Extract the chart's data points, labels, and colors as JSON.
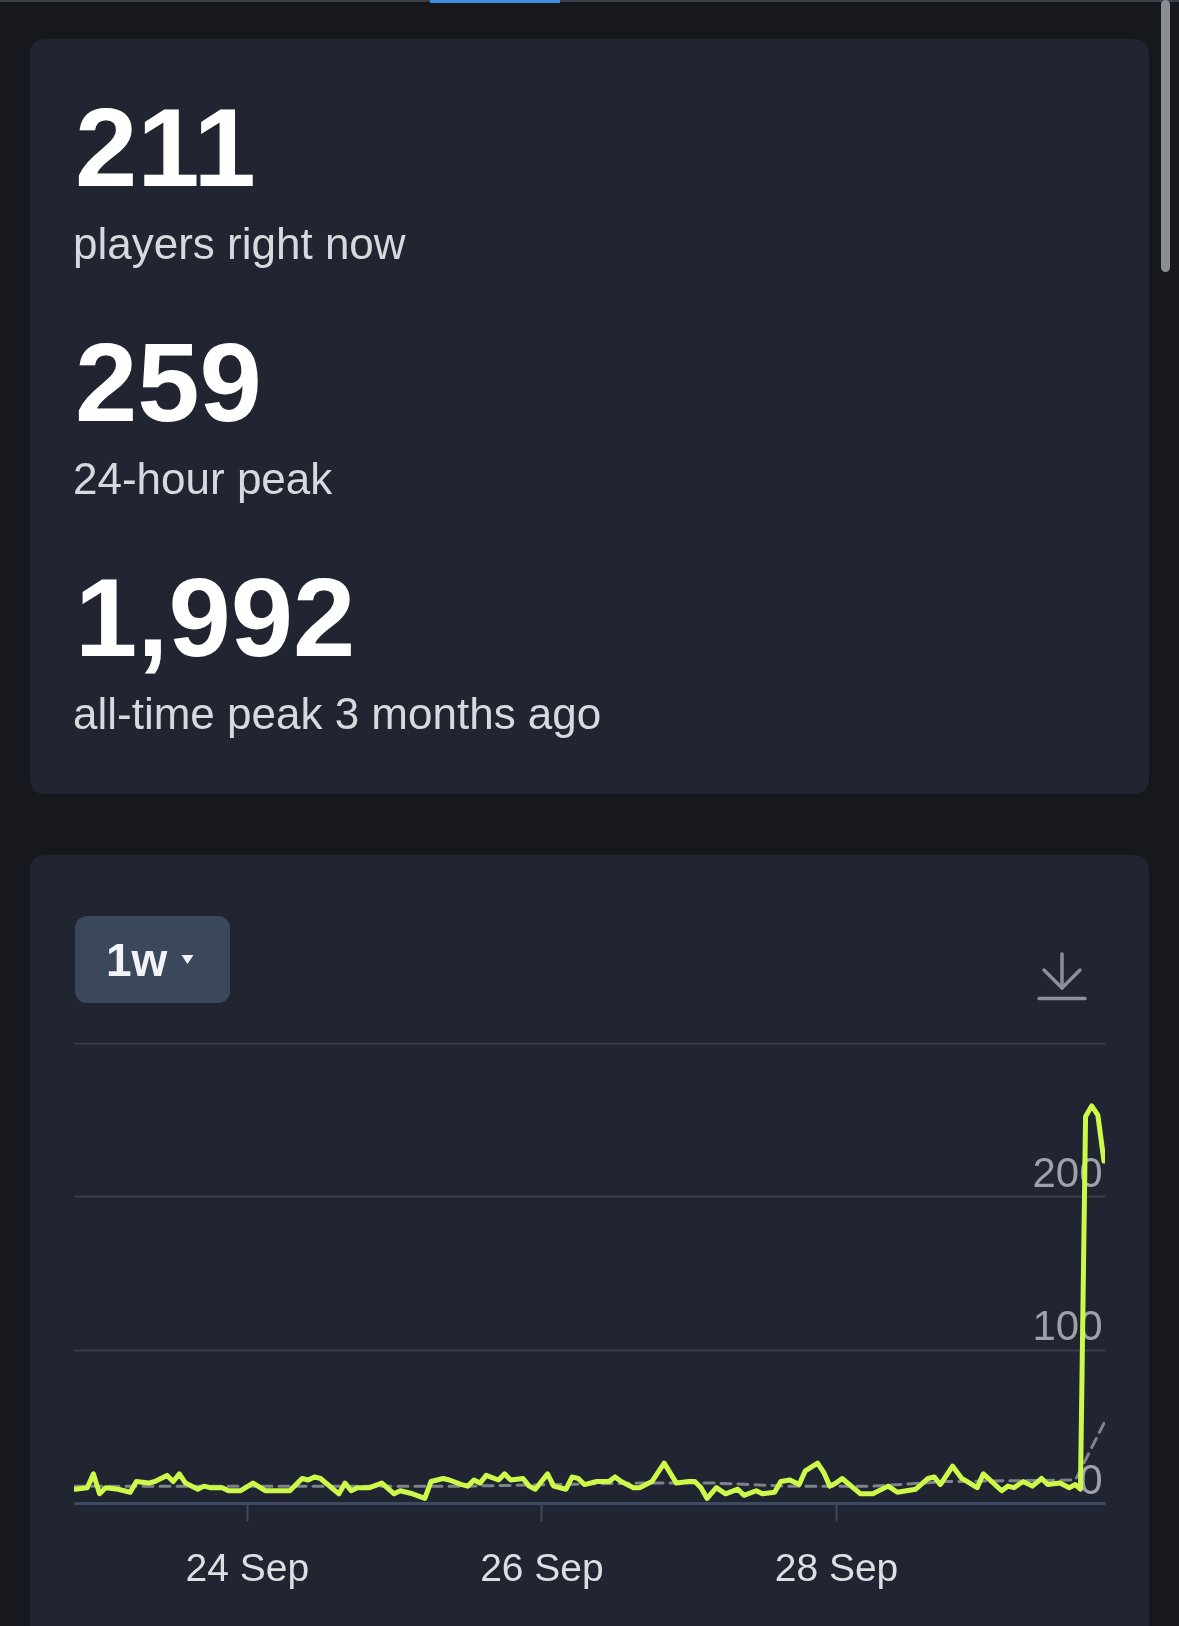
{
  "chart_data": [
    {
      "type": "other",
      "annotations": [
        "211",
        "players right now",
        "259",
        "24-hour peak",
        "1,992",
        "all-time peak 3 months ago"
      ]
    },
    {
      "type": "line",
      "annotations": [
        "1w"
      ],
      "x": [
        "--09-22T20:00",
        "--09-22T22:00",
        "--09-22T23:00",
        "--09-23T00:00",
        "--09-23T01:00",
        "--09-23T03:00",
        "--09-23T05:00",
        "--09-23T06:00",
        "--09-23T08:00",
        "--09-23T09:00",
        "--09-23T10:00",
        "--09-23T11:00",
        "--09-23T12:00",
        "--09-23T13:00",
        "--09-23T14:00",
        "--09-23T16:00",
        "--09-23T17:00",
        "--09-23T18:00",
        "--09-23T20:00",
        "--09-23T21:00",
        "--09-23T23:00",
        "--09-24T01:00",
        "--09-24T03:00",
        "--09-24T05:00",
        "--09-24T07:00",
        "--09-24T09:00",
        "--09-24T10:00",
        "--09-24T11:00",
        "--09-24T12:00",
        "--09-24T15:00",
        "--09-24T16:00",
        "--09-24T17:00",
        "--09-24T18:00",
        "--09-24T20:00",
        "--09-24T22:00",
        "--09-25T00:00",
        "--09-25T01:00",
        "--09-25T03:00",
        "--09-25T05:00",
        "--09-25T06:00",
        "--09-25T08:00",
        "--09-25T09:00",
        "--09-25T11:00",
        "--09-25T12:00",
        "--09-25T13:00",
        "--09-25T14:00",
        "--09-25T15:00",
        "--09-25T17:00",
        "--09-25T18:00",
        "--09-25T19:00",
        "--09-25T21:00",
        "--09-25T22:00",
        "--09-25T23:00",
        "--09-26T01:00",
        "--09-26T02:00",
        "--09-26T04:00",
        "--09-26T05:00",
        "--09-26T06:00",
        "--09-26T07:00",
        "--09-26T09:00",
        "--09-26T11:00",
        "--09-26T12:00",
        "--09-26T13:00",
        "--09-26T15:00",
        "--09-26T16:00",
        "--09-26T18:00",
        "--09-26T20:00",
        "--09-26T22:00",
        "--09-27T00:00",
        "--09-27T01:00",
        "--09-27T02:00",
        "--09-27T03:00",
        "--09-27T04:30",
        "--09-27T06:00",
        "--09-27T08:00",
        "--09-27T09:00",
        "--09-27T11:00",
        "--09-27T12:00",
        "--09-27T14:00",
        "--09-27T15:00",
        "--09-27T16:30",
        "--09-27T18:00",
        "--09-27T19:00",
        "--09-27T21:00",
        "--09-27T22:00",
        "--09-27T23:00",
        "--09-28T00:00",
        "--09-28T01:00",
        "--09-28T04:00",
        "--09-28T06:00",
        "--09-28T08:30",
        "--09-28T10:00",
        "--09-28T13:00",
        "--09-28T15:00",
        "--09-28T16:00",
        "--09-28T17:00",
        "--09-28T19:00",
        "--09-28T20:30",
        "--09-28T23:00",
        "--09-29T00:00",
        "--09-29T03:00",
        "--09-29T04:00",
        "--09-29T05:00",
        "--09-29T06:30",
        "--09-29T08:00",
        "--09-29T09:30",
        "--09-29T10:30",
        "--09-29T12:30",
        "--09-29T14:00",
        "--09-29T15:00",
        "--09-29T15:50",
        "--09-29T16:40",
        "--09-29T17:40",
        "--09-29T18:40",
        "--09-29T19:40"
      ],
      "series": [
        {
          "color": "#7d828b",
          "line_style": "dashed",
          "x": [
            "--09-22T20:00",
            "--09-24T12:00",
            "--09-25T12:00",
            "--09-26T16:00",
            "--09-27T04:00",
            "--09-27T16:00",
            "--09-28T06:00",
            "--09-28T18:00",
            "--09-29T15:00",
            "--09-29T19:40"
          ],
          "values": [
            11,
            11,
            11,
            13,
            13,
            11,
            11,
            14,
            15,
            52
          ]
        },
        {
          "color": "#cdf94a",
          "values": [
            9,
            10,
            19,
            6,
            10,
            9,
            7,
            14,
            13,
            14,
            16,
            18,
            14,
            19,
            13,
            9,
            11,
            10,
            10,
            8,
            8,
            13,
            8,
            8,
            8,
            16,
            15,
            17,
            16,
            6,
            13,
            8,
            10,
            10,
            13,
            6,
            8,
            6,
            3,
            14,
            16,
            15,
            12,
            11,
            15,
            13,
            18,
            15,
            19,
            15,
            16,
            11,
            9,
            19,
            11,
            9,
            17,
            16,
            12,
            14,
            14,
            17,
            14,
            10,
            10,
            14,
            26,
            13,
            14,
            14,
            10,
            3,
            10,
            6,
            9,
            5,
            8,
            6,
            7,
            14,
            15,
            12,
            21,
            26,
            20,
            11,
            13,
            16,
            6,
            6,
            11,
            7,
            9,
            16,
            17,
            12,
            24,
            16,
            10,
            19,
            8,
            11,
            10,
            14,
            11,
            16,
            12,
            13,
            10,
            12,
            9,
            252,
            259,
            253,
            223
          ]
        }
      ],
      "xlim": [
        "--09-22T19:50",
        "--09-29T19:50"
      ],
      "xticks": [
        {
          "value": "--09-24",
          "label": "24 Sep"
        },
        {
          "value": "--09-26",
          "label": "26 Sep"
        },
        {
          "value": "--09-28",
          "label": "28 Sep"
        }
      ],
      "ylim": [
        0,
        300
      ],
      "yticks": [
        0,
        100,
        200,
        {
          "value": 300,
          "label": null
        }
      ],
      "grid": "y"
    }
  ]
}
